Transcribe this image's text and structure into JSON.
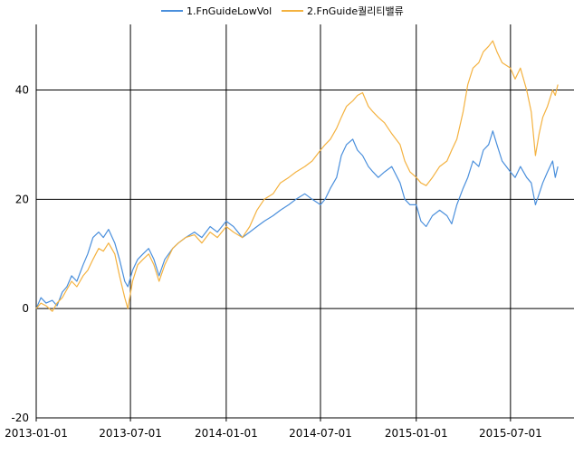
{
  "chart_data": {
    "type": "line",
    "title": "",
    "xlabel": "",
    "ylabel": "",
    "xlim": [
      "2013-01-01",
      "2015-10-31"
    ],
    "ylim": [
      -20,
      52
    ],
    "x_ticks": [
      "2013-01-01",
      "2013-07-01",
      "2014-01-01",
      "2014-07-01",
      "2015-01-01",
      "2015-07-01"
    ],
    "y_ticks": [
      -20,
      0,
      20,
      40
    ],
    "grid": true,
    "legend_position": "top-center",
    "series": [
      {
        "name": "1.FnGuideLowVol",
        "color": "#4a8fdc",
        "points": [
          [
            "2013-01-01",
            0
          ],
          [
            "2013-01-10",
            2
          ],
          [
            "2013-01-20",
            1
          ],
          [
            "2013-02-01",
            1.5
          ],
          [
            "2013-02-10",
            0.5
          ],
          [
            "2013-02-20",
            3
          ],
          [
            "2013-03-01",
            4
          ],
          [
            "2013-03-10",
            6
          ],
          [
            "2013-03-20",
            5
          ],
          [
            "2013-04-01",
            8
          ],
          [
            "2013-04-10",
            10
          ],
          [
            "2013-04-20",
            13
          ],
          [
            "2013-05-01",
            14
          ],
          [
            "2013-05-10",
            13
          ],
          [
            "2013-05-20",
            14.5
          ],
          [
            "2013-06-01",
            12
          ],
          [
            "2013-06-10",
            9
          ],
          [
            "2013-06-20",
            5
          ],
          [
            "2013-06-26",
            4
          ],
          [
            "2013-07-05",
            7
          ],
          [
            "2013-07-15",
            9
          ],
          [
            "2013-07-25",
            10
          ],
          [
            "2013-08-05",
            11
          ],
          [
            "2013-08-15",
            9
          ],
          [
            "2013-08-25",
            6
          ],
          [
            "2013-09-05",
            9
          ],
          [
            "2013-09-20",
            11
          ],
          [
            "2013-10-01",
            12
          ],
          [
            "2013-10-15",
            13
          ],
          [
            "2013-11-01",
            14
          ],
          [
            "2013-11-15",
            13
          ],
          [
            "2013-12-01",
            15
          ],
          [
            "2013-12-15",
            14
          ],
          [
            "2014-01-01",
            16
          ],
          [
            "2014-01-15",
            15
          ],
          [
            "2014-02-01",
            13
          ],
          [
            "2014-02-15",
            14
          ],
          [
            "2014-03-01",
            15
          ],
          [
            "2014-03-15",
            16
          ],
          [
            "2014-04-01",
            17
          ],
          [
            "2014-04-15",
            18
          ],
          [
            "2014-05-01",
            19
          ],
          [
            "2014-05-15",
            20
          ],
          [
            "2014-06-01",
            21
          ],
          [
            "2014-06-15",
            20
          ],
          [
            "2014-07-01",
            19
          ],
          [
            "2014-07-10",
            20
          ],
          [
            "2014-07-20",
            22
          ],
          [
            "2014-08-01",
            24
          ],
          [
            "2014-08-10",
            28
          ],
          [
            "2014-08-20",
            30
          ],
          [
            "2014-09-01",
            31
          ],
          [
            "2014-09-10",
            29
          ],
          [
            "2014-09-20",
            28
          ],
          [
            "2014-10-01",
            26
          ],
          [
            "2014-10-10",
            25
          ],
          [
            "2014-10-20",
            24
          ],
          [
            "2014-11-01",
            25
          ],
          [
            "2014-11-15",
            26
          ],
          [
            "2014-12-01",
            23
          ],
          [
            "2014-12-10",
            20
          ],
          [
            "2014-12-20",
            19
          ],
          [
            "2015-01-01",
            19
          ],
          [
            "2015-01-10",
            16
          ],
          [
            "2015-01-20",
            15
          ],
          [
            "2015-02-01",
            17
          ],
          [
            "2015-02-15",
            18
          ],
          [
            "2015-03-01",
            17
          ],
          [
            "2015-03-10",
            15.5
          ],
          [
            "2015-03-20",
            19
          ],
          [
            "2015-04-01",
            22
          ],
          [
            "2015-04-10",
            24
          ],
          [
            "2015-04-20",
            27
          ],
          [
            "2015-05-01",
            26
          ],
          [
            "2015-05-10",
            29
          ],
          [
            "2015-05-20",
            30
          ],
          [
            "2015-05-28",
            32.5
          ],
          [
            "2015-06-05",
            30
          ],
          [
            "2015-06-15",
            27
          ],
          [
            "2015-07-01",
            25
          ],
          [
            "2015-07-10",
            24
          ],
          [
            "2015-07-20",
            26
          ],
          [
            "2015-08-01",
            24
          ],
          [
            "2015-08-10",
            23
          ],
          [
            "2015-08-18",
            19
          ],
          [
            "2015-08-25",
            21
          ],
          [
            "2015-09-01",
            23
          ],
          [
            "2015-09-10",
            25
          ],
          [
            "2015-09-20",
            27
          ],
          [
            "2015-09-25",
            24
          ],
          [
            "2015-09-30",
            26
          ]
        ]
      },
      {
        "name": "2.FnGuide퀄리티밸류",
        "color": "#f4b240",
        "points": [
          [
            "2013-01-01",
            0
          ],
          [
            "2013-01-10",
            1
          ],
          [
            "2013-01-20",
            0.5
          ],
          [
            "2013-02-01",
            -0.5
          ],
          [
            "2013-02-10",
            1
          ],
          [
            "2013-02-20",
            2
          ],
          [
            "2013-03-01",
            3.5
          ],
          [
            "2013-03-10",
            5
          ],
          [
            "2013-03-20",
            4
          ],
          [
            "2013-04-01",
            6
          ],
          [
            "2013-04-10",
            7
          ],
          [
            "2013-04-20",
            9
          ],
          [
            "2013-05-01",
            11
          ],
          [
            "2013-05-10",
            10.5
          ],
          [
            "2013-05-20",
            12
          ],
          [
            "2013-06-01",
            10
          ],
          [
            "2013-06-10",
            6
          ],
          [
            "2013-06-20",
            2
          ],
          [
            "2013-06-26",
            0
          ],
          [
            "2013-07-05",
            5
          ],
          [
            "2013-07-15",
            8
          ],
          [
            "2013-07-25",
            9
          ],
          [
            "2013-08-05",
            10
          ],
          [
            "2013-08-15",
            8
          ],
          [
            "2013-08-25",
            5
          ],
          [
            "2013-09-05",
            8
          ],
          [
            "2013-09-20",
            11
          ],
          [
            "2013-10-01",
            12
          ],
          [
            "2013-10-15",
            13
          ],
          [
            "2013-11-01",
            13.5
          ],
          [
            "2013-11-15",
            12
          ],
          [
            "2013-12-01",
            14
          ],
          [
            "2013-12-15",
            13
          ],
          [
            "2014-01-01",
            15
          ],
          [
            "2014-01-15",
            14
          ],
          [
            "2014-02-01",
            13
          ],
          [
            "2014-02-15",
            15
          ],
          [
            "2014-03-01",
            18
          ],
          [
            "2014-03-15",
            20
          ],
          [
            "2014-04-01",
            21
          ],
          [
            "2014-04-15",
            23
          ],
          [
            "2014-05-01",
            24
          ],
          [
            "2014-05-15",
            25
          ],
          [
            "2014-06-01",
            26
          ],
          [
            "2014-06-15",
            27
          ],
          [
            "2014-07-01",
            29
          ],
          [
            "2014-07-10",
            30
          ],
          [
            "2014-07-20",
            31
          ],
          [
            "2014-08-01",
            33
          ],
          [
            "2014-08-10",
            35
          ],
          [
            "2014-08-20",
            37
          ],
          [
            "2014-09-01",
            38
          ],
          [
            "2014-09-10",
            39
          ],
          [
            "2014-09-20",
            39.5
          ],
          [
            "2014-10-01",
            37
          ],
          [
            "2014-10-10",
            36
          ],
          [
            "2014-10-20",
            35
          ],
          [
            "2014-11-01",
            34
          ],
          [
            "2014-11-15",
            32
          ],
          [
            "2014-12-01",
            30
          ],
          [
            "2014-12-10",
            27
          ],
          [
            "2014-12-20",
            25
          ],
          [
            "2015-01-01",
            24
          ],
          [
            "2015-01-10",
            23
          ],
          [
            "2015-01-20",
            22.5
          ],
          [
            "2015-02-01",
            24
          ],
          [
            "2015-02-15",
            26
          ],
          [
            "2015-03-01",
            27
          ],
          [
            "2015-03-10",
            29
          ],
          [
            "2015-03-20",
            31
          ],
          [
            "2015-04-01",
            36
          ],
          [
            "2015-04-10",
            41
          ],
          [
            "2015-04-20",
            44
          ],
          [
            "2015-05-01",
            45
          ],
          [
            "2015-05-10",
            47
          ],
          [
            "2015-05-20",
            48
          ],
          [
            "2015-05-28",
            49
          ],
          [
            "2015-06-05",
            47
          ],
          [
            "2015-06-15",
            45
          ],
          [
            "2015-07-01",
            44
          ],
          [
            "2015-07-10",
            42
          ],
          [
            "2015-07-20",
            44
          ],
          [
            "2015-08-01",
            40
          ],
          [
            "2015-08-10",
            36
          ],
          [
            "2015-08-18",
            28
          ],
          [
            "2015-08-25",
            32
          ],
          [
            "2015-09-01",
            35
          ],
          [
            "2015-09-10",
            37
          ],
          [
            "2015-09-20",
            40
          ],
          [
            "2015-09-25",
            39
          ],
          [
            "2015-09-30",
            41
          ]
        ]
      }
    ]
  }
}
